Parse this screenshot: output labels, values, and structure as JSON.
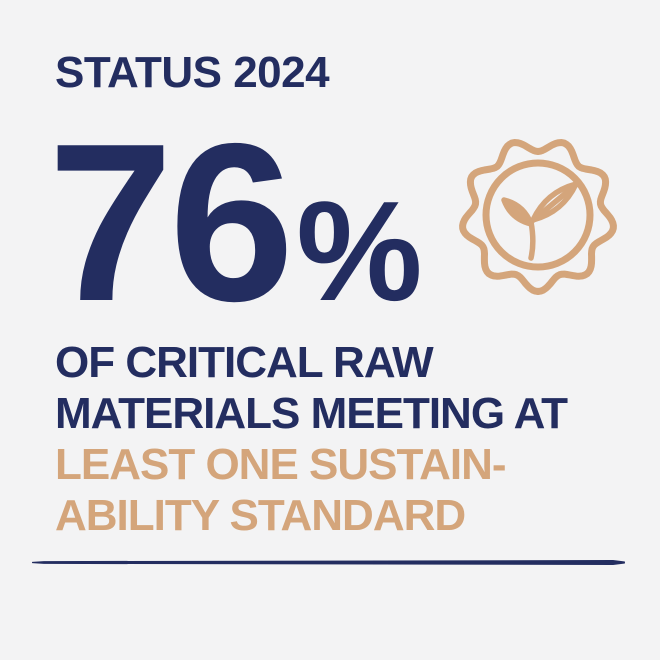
{
  "page": {
    "background": "#f3f3f4"
  },
  "colors": {
    "navy": "#232d60",
    "tan": "#d4a57b"
  },
  "header": {
    "title": "STATUS 2024"
  },
  "stat": {
    "value": "76",
    "unit": "%"
  },
  "badge": {
    "icon": "sustainability-seal-icon"
  },
  "description": {
    "lines": [
      {
        "text": "OF CRITICAL RAW",
        "color": "navy"
      },
      {
        "text": "MATERIALS MEETING AT",
        "color": "navy"
      },
      {
        "text": "LEAST ONE SUSTAIN-",
        "color": "tan"
      },
      {
        "text": "ABILITY STANDARD",
        "color": "tan"
      }
    ]
  },
  "chart_data": {
    "type": "table",
    "title": "STATUS 2024",
    "categories": [
      "Critical raw materials meeting at least one sustainability standard"
    ],
    "values": [
      76
    ],
    "unit": "%",
    "notes": "Single KPI infographic: 76% of critical raw materials meeting at least one sustainability standard, status 2024"
  }
}
